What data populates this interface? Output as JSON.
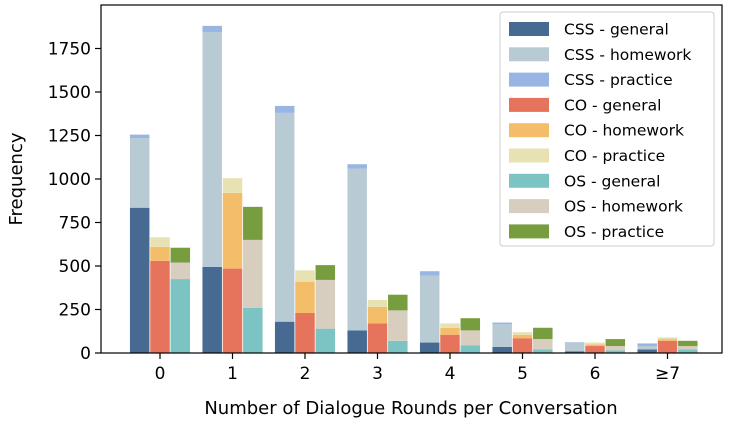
{
  "chart_data": {
    "type": "bar",
    "stacked": true,
    "grouped": true,
    "categories": [
      "0",
      "1",
      "2",
      "3",
      "4",
      "5",
      "6",
      "≥7"
    ],
    "xlabel": "Number of Dialogue Rounds per Conversation",
    "ylabel": "Frequency",
    "ylim": [
      0,
      2000
    ],
    "yticks": [
      0,
      250,
      500,
      750,
      1000,
      1250,
      1500,
      1750
    ],
    "grid": false,
    "legend_position": "top-right",
    "groups": [
      {
        "name": "CSS",
        "segments": [
          {
            "name": "CSS - general",
            "color": "#476A93",
            "values": [
              835,
              495,
              180,
              130,
              60,
              35,
              10,
              20
            ]
          },
          {
            "name": "CSS - homework",
            "color": "#B8CBD5",
            "values": [
              400,
              1350,
              1200,
              930,
              385,
              130,
              50,
              20
            ]
          },
          {
            "name": "CSS - practice",
            "color": "#98B5E3",
            "values": [
              20,
              35,
              40,
              25,
              25,
              10,
              2,
              15
            ]
          }
        ]
      },
      {
        "name": "CO",
        "segments": [
          {
            "name": "CO - general",
            "color": "#E6735C",
            "values": [
              530,
              485,
              230,
              170,
              105,
              85,
              40,
              70
            ]
          },
          {
            "name": "CO - homework",
            "color": "#F4BD6A",
            "values": [
              80,
              435,
              180,
              95,
              40,
              20,
              10,
              10
            ]
          },
          {
            "name": "CO - practice",
            "color": "#E8E2B2",
            "values": [
              55,
              85,
              65,
              40,
              25,
              15,
              10,
              10
            ]
          }
        ]
      },
      {
        "name": "OS",
        "segments": [
          {
            "name": "OS - general",
            "color": "#7CC4C3",
            "values": [
              425,
              260,
              140,
              70,
              45,
              20,
              15,
              20
            ]
          },
          {
            "name": "OS - homework",
            "color": "#D8CEC0",
            "values": [
              95,
              390,
              280,
              175,
              85,
              60,
              25,
              20
            ]
          },
          {
            "name": "OS - practice",
            "color": "#789D3E",
            "values": [
              85,
              190,
              85,
              90,
              70,
              65,
              40,
              30
            ]
          }
        ]
      }
    ]
  }
}
